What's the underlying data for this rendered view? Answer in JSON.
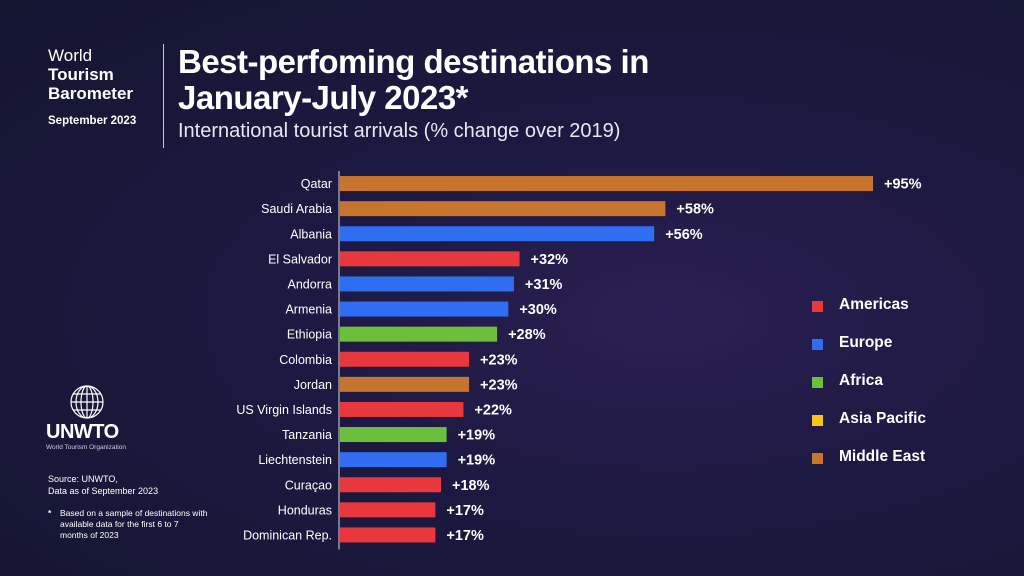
{
  "header": {
    "brand_line1": "World",
    "brand_line2": "Tourism",
    "brand_line3": "Barometer",
    "date": "September 2023",
    "title_line1": "Best-perfoming destinations in",
    "title_line2": "January-July 2023*",
    "subtitle": "International tourist arrivals (% change over 2019)"
  },
  "logo": {
    "name": "UNWTO",
    "org": "World Tourism Organization"
  },
  "source": {
    "line1": "Source: UNWTO,",
    "line2": "Data as of September 2023"
  },
  "footnote": {
    "marker": "*",
    "text": "Based on a sample of destinations with available data for the first 6 to 7 months of 2023"
  },
  "colors": {
    "Americas": "#e8383d",
    "Europe": "#2f6ef0",
    "Africa": "#6cbf3a",
    "Asia Pacific": "#f5c518",
    "Middle East": "#c7742f"
  },
  "legend": [
    {
      "label": "Americas",
      "color": "#e8383d"
    },
    {
      "label": "Europe",
      "color": "#2f6ef0"
    },
    {
      "label": "Africa",
      "color": "#6cbf3a"
    },
    {
      "label": "Asia Pacific",
      "color": "#f5c518"
    },
    {
      "label": "Middle East",
      "color": "#c7742f"
    }
  ],
  "chart_data": {
    "type": "bar",
    "orientation": "horizontal",
    "xlim": [
      0,
      95
    ],
    "grid": false,
    "legend_position": "right",
    "categories": [
      "Qatar",
      "Saudi Arabia",
      "Albania",
      "El Salvador",
      "Andorra",
      "Armenia",
      "Ethiopia",
      "Colombia",
      "Jordan",
      "US Virgin Islands",
      "Tanzania",
      "Liechtenstein",
      "Curaçao",
      "Honduras",
      "Dominican Rep."
    ],
    "values": [
      95,
      58,
      56,
      32,
      31,
      30,
      28,
      23,
      23,
      22,
      19,
      19,
      18,
      17,
      17
    ],
    "labels": [
      "+95%",
      "+58%",
      "+56%",
      "+32%",
      "+31%",
      "+30%",
      "+28%",
      "+23%",
      "+23%",
      "+22%",
      "+19%",
      "+19%",
      "+18%",
      "+17%",
      "+17%"
    ],
    "regions": [
      "Middle East",
      "Middle East",
      "Europe",
      "Americas",
      "Europe",
      "Europe",
      "Africa",
      "Americas",
      "Middle East",
      "Americas",
      "Africa",
      "Europe",
      "Americas",
      "Americas",
      "Americas"
    ]
  }
}
